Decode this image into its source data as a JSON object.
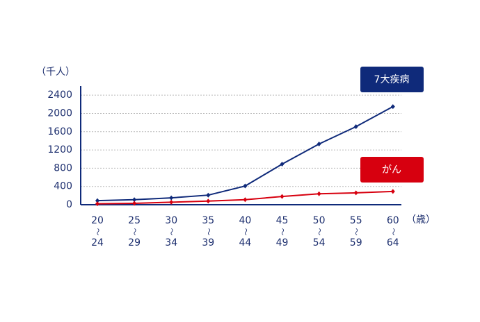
{
  "chart_data": {
    "type": "line",
    "y_label": "（千人）",
    "x_unit": "（歳）",
    "categories": [
      [
        "20",
        "〜",
        "24"
      ],
      [
        "25",
        "〜",
        "29"
      ],
      [
        "30",
        "〜",
        "34"
      ],
      [
        "35",
        "〜",
        "39"
      ],
      [
        "40",
        "〜",
        "44"
      ],
      [
        "45",
        "〜",
        "49"
      ],
      [
        "50",
        "〜",
        "54"
      ],
      [
        "55",
        "〜",
        "59"
      ],
      [
        "60",
        "〜",
        "64"
      ]
    ],
    "series": [
      {
        "name": "7大疾病",
        "color": "#0f2a7a",
        "values": [
          90,
          110,
          150,
          210,
          410,
          890,
          1330,
          1710,
          2150
        ]
      },
      {
        "name": "がん",
        "color": "#d7000f",
        "values": [
          20,
          30,
          55,
          80,
          110,
          180,
          240,
          260,
          290
        ]
      }
    ],
    "ylim": [
      0,
      2600
    ],
    "yticks": [
      0,
      400,
      800,
      1200,
      1600,
      2000,
      2400
    ],
    "grid": true
  }
}
